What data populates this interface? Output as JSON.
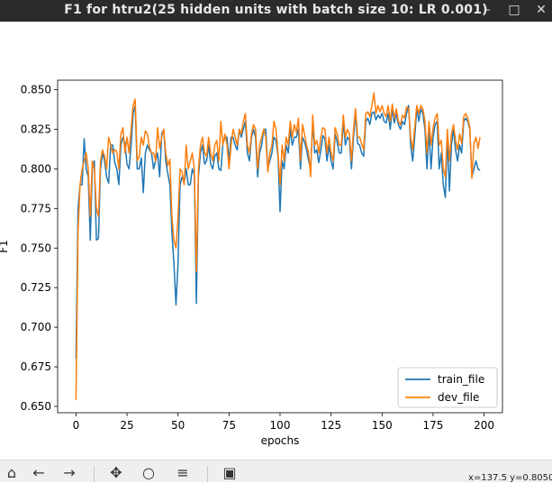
{
  "window": {
    "title": "F1 for htru2(25 hidden units with batch size 10: LR 0.001)",
    "minimize_icon": "minimize-icon",
    "maximize_icon": "maximize-icon",
    "close_icon": "close-icon"
  },
  "toolbar": {
    "icons": [
      "home-icon",
      "back-arrow-icon",
      "forward-arrow-icon",
      "pan-icon",
      "zoom-icon",
      "configure-subplots-icon",
      "save-icon"
    ],
    "coords": "x=137.5 y=0.8050"
  },
  "chart_data": {
    "type": "line",
    "xlabel": "epochs",
    "ylabel": "F1",
    "xlim": [
      -9,
      209
    ],
    "ylim": [
      0.646,
      0.856
    ],
    "xticks": [
      0,
      25,
      50,
      75,
      100,
      125,
      150,
      175,
      200
    ],
    "yticks": [
      0.65,
      0.675,
      0.7,
      0.725,
      0.75,
      0.775,
      0.8,
      0.825,
      0.85
    ],
    "ytick_labels": [
      "0.650",
      "0.675",
      "0.700",
      "0.725",
      "0.750",
      "0.775",
      "0.800",
      "0.825",
      "0.850"
    ],
    "legend_position": "lower-right",
    "grid": false,
    "series": [
      {
        "name": "train_file",
        "color": "#1f77b4",
        "x_start": 0,
        "x_step": 1,
        "values": [
          0.68,
          0.775,
          0.79,
          0.79,
          0.819,
          0.8,
          0.795,
          0.755,
          0.8,
          0.805,
          0.755,
          0.756,
          0.8,
          0.81,
          0.805,
          0.795,
          0.791,
          0.815,
          0.815,
          0.804,
          0.8,
          0.79,
          0.815,
          0.82,
          0.816,
          0.803,
          0.8,
          0.815,
          0.835,
          0.84,
          0.8,
          0.8,
          0.807,
          0.785,
          0.81,
          0.815,
          0.812,
          0.81,
          0.8,
          0.805,
          0.81,
          0.795,
          0.822,
          0.825,
          0.805,
          0.797,
          0.79,
          0.76,
          0.74,
          0.714,
          0.74,
          0.79,
          0.795,
          0.791,
          0.8,
          0.79,
          0.79,
          0.8,
          0.796,
          0.715,
          0.795,
          0.81,
          0.815,
          0.803,
          0.805,
          0.815,
          0.803,
          0.8,
          0.808,
          0.81,
          0.8,
          0.799,
          0.816,
          0.82,
          0.82,
          0.805,
          0.82,
          0.82,
          0.815,
          0.812,
          0.825,
          0.82,
          0.825,
          0.83,
          0.81,
          0.805,
          0.82,
          0.825,
          0.82,
          0.795,
          0.81,
          0.815,
          0.825,
          0.825,
          0.8,
          0.805,
          0.81,
          0.82,
          0.818,
          0.808,
          0.773,
          0.805,
          0.8,
          0.815,
          0.81,
          0.825,
          0.815,
          0.82,
          0.82,
          0.825,
          0.8,
          0.82,
          0.817,
          0.812,
          0.805,
          0.8,
          0.83,
          0.81,
          0.812,
          0.804,
          0.812,
          0.821,
          0.819,
          0.805,
          0.815,
          0.805,
          0.8,
          0.822,
          0.817,
          0.81,
          0.81,
          0.83,
          0.815,
          0.82,
          0.818,
          0.8,
          0.82,
          0.835,
          0.816,
          0.815,
          0.81,
          0.808,
          0.83,
          0.832,
          0.828,
          0.835,
          0.836,
          0.831,
          0.834,
          0.832,
          0.835,
          0.83,
          0.829,
          0.835,
          0.825,
          0.838,
          0.829,
          0.835,
          0.828,
          0.825,
          0.83,
          0.828,
          0.835,
          0.84,
          0.815,
          0.805,
          0.82,
          0.838,
          0.83,
          0.838,
          0.835,
          0.825,
          0.8,
          0.825,
          0.8,
          0.82,
          0.828,
          0.83,
          0.8,
          0.81,
          0.79,
          0.782,
          0.82,
          0.786,
          0.815,
          0.825,
          0.812,
          0.805,
          0.815,
          0.81,
          0.83,
          0.832,
          0.83,
          0.825,
          0.795,
          0.8,
          0.805,
          0.8,
          0.799
        ]
      },
      {
        "name": "dev_file",
        "color": "#ff7f0e",
        "x_start": 0,
        "x_step": 1,
        "values": [
          0.654,
          0.76,
          0.79,
          0.8,
          0.805,
          0.81,
          0.8,
          0.77,
          0.805,
          0.8,
          0.775,
          0.77,
          0.805,
          0.812,
          0.808,
          0.8,
          0.82,
          0.815,
          0.81,
          0.812,
          0.811,
          0.8,
          0.822,
          0.826,
          0.81,
          0.82,
          0.81,
          0.825,
          0.84,
          0.844,
          0.805,
          0.808,
          0.82,
          0.815,
          0.824,
          0.822,
          0.814,
          0.81,
          0.81,
          0.805,
          0.826,
          0.813,
          0.82,
          0.825,
          0.81,
          0.802,
          0.806,
          0.77,
          0.755,
          0.75,
          0.77,
          0.8,
          0.798,
          0.79,
          0.815,
          0.8,
          0.805,
          0.81,
          0.8,
          0.735,
          0.8,
          0.815,
          0.82,
          0.81,
          0.808,
          0.82,
          0.81,
          0.805,
          0.815,
          0.818,
          0.805,
          0.83,
          0.815,
          0.822,
          0.815,
          0.8,
          0.815,
          0.825,
          0.82,
          0.815,
          0.825,
          0.822,
          0.83,
          0.835,
          0.815,
          0.81,
          0.822,
          0.828,
          0.825,
          0.8,
          0.815,
          0.82,
          0.825,
          0.82,
          0.798,
          0.81,
          0.815,
          0.83,
          0.825,
          0.81,
          0.79,
          0.815,
          0.805,
          0.82,
          0.815,
          0.83,
          0.82,
          0.828,
          0.823,
          0.832,
          0.805,
          0.828,
          0.822,
          0.815,
          0.81,
          0.795,
          0.834,
          0.815,
          0.818,
          0.81,
          0.82,
          0.826,
          0.825,
          0.81,
          0.82,
          0.81,
          0.805,
          0.826,
          0.822,
          0.815,
          0.815,
          0.834,
          0.82,
          0.825,
          0.822,
          0.805,
          0.825,
          0.838,
          0.82,
          0.82,
          0.816,
          0.812,
          0.835,
          0.836,
          0.833,
          0.84,
          0.848,
          0.835,
          0.84,
          0.836,
          0.84,
          0.835,
          0.833,
          0.84,
          0.83,
          0.841,
          0.832,
          0.838,
          0.83,
          0.828,
          0.834,
          0.832,
          0.839,
          0.838,
          0.82,
          0.812,
          0.826,
          0.84,
          0.835,
          0.84,
          0.838,
          0.83,
          0.81,
          0.83,
          0.815,
          0.826,
          0.832,
          0.835,
          0.815,
          0.818,
          0.8,
          0.795,
          0.825,
          0.805,
          0.822,
          0.828,
          0.818,
          0.812,
          0.822,
          0.816,
          0.833,
          0.835,
          0.832,
          0.826,
          0.794,
          0.816,
          0.82,
          0.813,
          0.82
        ]
      }
    ]
  }
}
